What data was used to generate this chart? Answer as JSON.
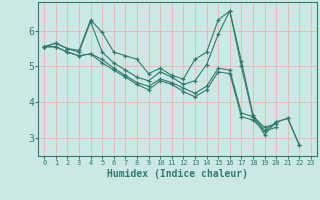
{
  "xlabel": "Humidex (Indice chaleur)",
  "xlim": [
    -0.5,
    23.5
  ],
  "ylim": [
    2.5,
    6.8
  ],
  "yticks": [
    3,
    4,
    5,
    6
  ],
  "xticks": [
    0,
    1,
    2,
    3,
    4,
    5,
    6,
    7,
    8,
    9,
    10,
    11,
    12,
    13,
    14,
    15,
    16,
    17,
    18,
    19,
    20,
    21,
    22,
    23
  ],
  "bg_color": "#cce8e4",
  "grid_color": "#f0b8b8",
  "line_color": "#2d7d6e",
  "series": [
    [
      5.55,
      5.65,
      5.5,
      5.45,
      6.3,
      5.95,
      5.4,
      5.3,
      5.2,
      4.8,
      4.95,
      4.75,
      4.65,
      5.2,
      5.4,
      6.3,
      6.55,
      5.15,
      3.65,
      3.2,
      3.45,
      3.55,
      2.8,
      null
    ],
    [
      5.55,
      5.65,
      5.5,
      5.4,
      6.25,
      5.4,
      5.1,
      4.9,
      4.7,
      4.6,
      4.85,
      4.7,
      4.5,
      4.6,
      5.05,
      5.9,
      6.55,
      5.0,
      3.6,
      3.1,
      3.45,
      3.55,
      2.8,
      null
    ],
    [
      5.55,
      5.55,
      5.4,
      5.3,
      5.35,
      5.2,
      4.95,
      4.75,
      4.55,
      4.45,
      4.65,
      4.55,
      4.4,
      4.25,
      4.45,
      4.95,
      4.9,
      3.7,
      3.6,
      3.3,
      3.4,
      null,
      null,
      null
    ],
    [
      5.55,
      5.55,
      5.4,
      5.3,
      5.35,
      5.1,
      4.9,
      4.7,
      4.5,
      4.35,
      4.6,
      4.5,
      4.3,
      4.15,
      4.35,
      4.85,
      4.8,
      3.6,
      3.5,
      3.2,
      3.3,
      null,
      null,
      null
    ]
  ],
  "marker": "+",
  "markersize": 3,
  "linewidth": 0.8
}
